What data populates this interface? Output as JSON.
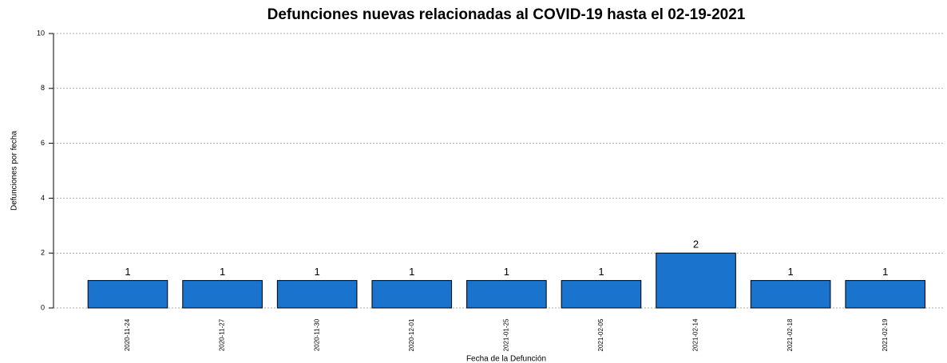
{
  "chart_data": {
    "type": "bar",
    "title": "Defunciones nuevas relacionadas al COVID-19 hasta el 02-19-2021",
    "x_label": "Fecha de la Defunción",
    "y_label": "Defunciones por fecha",
    "categories": [
      "2020-11-24",
      "2020-11-27",
      "2020-11-30",
      "2020-12-01",
      "2021-01-25",
      "2021-02-05",
      "2021-02-14",
      "2021-02-18",
      "2021-02-19"
    ],
    "values": [
      1,
      1,
      1,
      1,
      1,
      1,
      2,
      1,
      1
    ],
    "color": "#1a73cc",
    "ylim": [
      0,
      10
    ],
    "yticks": [
      0,
      2,
      4,
      6,
      8,
      10
    ],
    "grid": true
  }
}
